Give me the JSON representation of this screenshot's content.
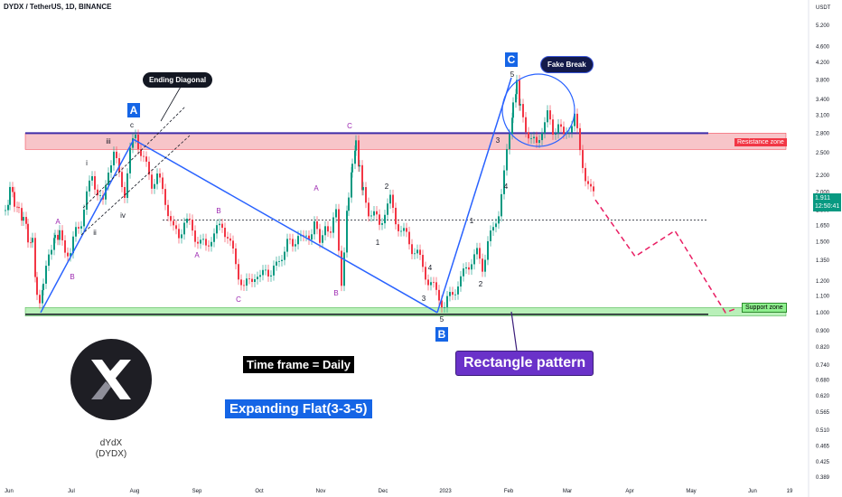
{
  "header": {
    "symbol": "DYDX / TetherUS, 1D, BINANCE"
  },
  "chart_data": {
    "type": "candlestick",
    "title": "DYDX / TetherUS, 1D, BINANCE",
    "price_axis": {
      "unit": "USDT",
      "scale": "log",
      "ticks": [
        "5.200",
        "4.600",
        "4.200",
        "3.800",
        "3.400",
        "3.100",
        "2.800",
        "2.500",
        "2.200",
        "2.000",
        "1.800",
        "1.650",
        "1.500",
        "1.350",
        "1.200",
        "1.100",
        "1.000",
        "0.900",
        "0.820",
        "0.740",
        "0.680",
        "0.620",
        "0.565",
        "0.510",
        "0.465",
        "0.425",
        "0.389"
      ],
      "tick_values": [
        5.2,
        4.6,
        4.2,
        3.8,
        3.4,
        3.1,
        2.8,
        2.5,
        2.2,
        2.0,
        1.8,
        1.65,
        1.5,
        1.35,
        1.2,
        1.1,
        1.0,
        0.9,
        0.82,
        0.74,
        0.68,
        0.62,
        0.565,
        0.51,
        0.465,
        0.425,
        0.389
      ]
    },
    "time_axis": {
      "labels": [
        "Jun",
        "Jul",
        "Aug",
        "Sep",
        "Oct",
        "Nov",
        "Dec",
        "2023",
        "Feb",
        "Mar",
        "Apr",
        "May",
        "Jun",
        "19"
      ]
    },
    "last_price": "1.911",
    "countdown": "12:50:41",
    "price_path": [
      [
        0,
        1.8
      ],
      [
        5,
        2.0
      ],
      [
        10,
        1.9
      ],
      [
        15,
        1.8
      ],
      [
        20,
        1.7
      ],
      [
        25,
        1.55
      ],
      [
        30,
        1.5
      ],
      [
        35,
        1.1
      ],
      [
        38,
        1.02
      ],
      [
        42,
        1.15
      ],
      [
        48,
        1.4
      ],
      [
        55,
        1.6
      ],
      [
        60,
        1.55
      ],
      [
        66,
        1.45
      ],
      [
        72,
        1.4
      ],
      [
        78,
        1.6
      ],
      [
        84,
        1.7
      ],
      [
        90,
        1.95
      ],
      [
        96,
        2.2
      ],
      [
        102,
        2.0
      ],
      [
        108,
        1.85
      ],
      [
        114,
        2.3
      ],
      [
        120,
        2.5
      ],
      [
        126,
        2.2
      ],
      [
        132,
        2.0
      ],
      [
        138,
        2.5
      ],
      [
        144,
        2.8
      ],
      [
        150,
        2.5
      ],
      [
        156,
        2.3
      ],
      [
        162,
        2.1
      ],
      [
        168,
        2.2
      ],
      [
        174,
        2.0
      ],
      [
        180,
        1.8
      ],
      [
        186,
        1.6
      ],
      [
        192,
        1.55
      ],
      [
        198,
        1.7
      ],
      [
        204,
        1.65
      ],
      [
        210,
        1.55
      ],
      [
        216,
        1.5
      ],
      [
        222,
        1.45
      ],
      [
        228,
        1.55
      ],
      [
        234,
        1.6
      ],
      [
        240,
        1.65
      ],
      [
        246,
        1.55
      ],
      [
        252,
        1.4
      ],
      [
        258,
        1.25
      ],
      [
        264,
        1.15
      ],
      [
        270,
        1.2
      ],
      [
        276,
        1.25
      ],
      [
        282,
        1.2
      ],
      [
        288,
        1.3
      ],
      [
        294,
        1.25
      ],
      [
        300,
        1.3
      ],
      [
        306,
        1.4
      ],
      [
        312,
        1.5
      ],
      [
        318,
        1.45
      ],
      [
        324,
        1.6
      ],
      [
        330,
        1.5
      ],
      [
        336,
        1.55
      ],
      [
        342,
        1.7
      ],
      [
        348,
        1.45
      ],
      [
        354,
        1.7
      ],
      [
        360,
        1.55
      ],
      [
        366,
        1.8
      ],
      [
        372,
        1.2
      ],
      [
        375,
        1.4
      ],
      [
        380,
        2.0
      ],
      [
        384,
        2.4
      ],
      [
        388,
        2.7
      ],
      [
        392,
        2.3
      ],
      [
        396,
        2.0
      ],
      [
        402,
        1.8
      ],
      [
        408,
        1.75
      ],
      [
        414,
        1.65
      ],
      [
        420,
        1.8
      ],
      [
        426,
        1.9
      ],
      [
        432,
        1.7
      ],
      [
        438,
        1.6
      ],
      [
        444,
        1.55
      ],
      [
        450,
        1.45
      ],
      [
        456,
        1.4
      ],
      [
        462,
        1.3
      ],
      [
        468,
        1.2
      ],
      [
        474,
        1.15
      ],
      [
        480,
        1.1
      ],
      [
        486,
        1.03
      ],
      [
        492,
        1.1
      ],
      [
        498,
        1.15
      ],
      [
        504,
        1.2
      ],
      [
        510,
        1.3
      ],
      [
        516,
        1.35
      ],
      [
        522,
        1.4
      ],
      [
        528,
        1.3
      ],
      [
        534,
        1.5
      ],
      [
        540,
        1.6
      ],
      [
        546,
        1.8
      ],
      [
        552,
        2.2
      ],
      [
        558,
        2.8
      ],
      [
        562,
        3.3
      ],
      [
        566,
        3.7
      ],
      [
        570,
        3.2
      ],
      [
        576,
        2.9
      ],
      [
        582,
        2.7
      ],
      [
        588,
        2.6
      ],
      [
        594,
        2.9
      ],
      [
        600,
        3.1
      ],
      [
        606,
        2.8
      ],
      [
        612,
        3.0
      ],
      [
        618,
        2.7
      ],
      [
        624,
        2.9
      ],
      [
        630,
        3.1
      ],
      [
        636,
        2.5
      ],
      [
        642,
        2.2
      ],
      [
        648,
        2.0
      ],
      [
        654,
        1.91
      ]
    ],
    "forecast_path": [
      [
        654,
        1.91
      ],
      [
        698,
        1.38
      ],
      [
        742,
        1.6
      ],
      [
        798,
        1.0
      ],
      [
        808,
        1.02
      ]
    ],
    "resistance_zone": {
      "low": 2.55,
      "high": 2.8,
      "label": "Resistance zone"
    },
    "support_zone": {
      "low": 0.98,
      "high": 1.03,
      "label": "Support zone"
    },
    "dotted_level": 1.7,
    "annotations": {
      "ending_diagonal": "Ending Diagonal",
      "fake_break": "Fake Break",
      "timeframe": "Time frame = Daily",
      "pattern": "Expanding Flat(3-3-5)",
      "rectangle": "Rectangle pattern",
      "wave_A": "A",
      "wave_B": "B",
      "wave_C": "C"
    },
    "wave_labels": [
      "i",
      "ii",
      "iii",
      "iv",
      "c",
      "A",
      "B",
      "A",
      "B",
      "C",
      "A",
      "B",
      "C",
      "1",
      "2",
      "4",
      "5",
      "3",
      "1",
      "2",
      "3",
      "4",
      "5"
    ]
  },
  "logo": {
    "name": "dYdX",
    "ticker": "(DYDX)"
  },
  "colors": {
    "up": "#089981",
    "down": "#f23645",
    "trendline": "#2962ff",
    "resistance_fill": "#f7c5c9",
    "support_fill": "#b9f0b9",
    "forecast": "#e91e63",
    "wave_purple": "#9c27b0"
  }
}
